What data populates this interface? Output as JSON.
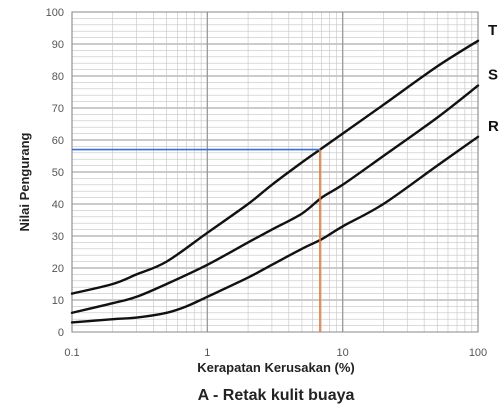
{
  "chart_data": {
    "type": "line",
    "title": "A -  Retak kulit buaya",
    "xlabel": "Kerapatan Kerusakan (%)",
    "ylabel": "Nilai Pengurang",
    "x_scale": "log",
    "xlim": [
      0.1,
      100
    ],
    "ylim": [
      0,
      100
    ],
    "x_ticks": [
      "0.1",
      "1",
      "10",
      "100"
    ],
    "y_ticks": [
      "0",
      "10",
      "20",
      "30",
      "40",
      "50",
      "60",
      "70",
      "80",
      "90",
      "100"
    ],
    "grid": true,
    "series": [
      {
        "name": "T",
        "x": [
          0.1,
          0.2,
          0.3,
          0.5,
          1,
          2,
          3,
          5,
          6.8,
          10,
          20,
          50,
          100
        ],
        "y": [
          12,
          15,
          18,
          22,
          31,
          40,
          46,
          53,
          57,
          62,
          71,
          83,
          91
        ]
      },
      {
        "name": "S",
        "x": [
          0.1,
          0.2,
          0.3,
          0.5,
          1,
          2,
          3,
          5,
          7,
          10,
          20,
          50,
          100
        ],
        "y": [
          6,
          9,
          11,
          15,
          21,
          28,
          32,
          37,
          42,
          46,
          55,
          67,
          77
        ]
      },
      {
        "name": "R",
        "x": [
          0.1,
          0.2,
          0.3,
          0.5,
          0.7,
          1,
          2,
          3,
          5,
          7,
          10,
          20,
          50,
          100
        ],
        "y": [
          3,
          4,
          4.5,
          6,
          8,
          11,
          17,
          21,
          26,
          29,
          33,
          40,
          52,
          61
        ]
      }
    ],
    "reading": {
      "x": 6.8,
      "y": 57,
      "horizontal_color": "#3a6fd8",
      "vertical_color": "#e8752a"
    },
    "colors": {
      "curve": "#111111",
      "major_grid": "#9a9a9a",
      "minor_grid": "#c4c4c4"
    }
  }
}
